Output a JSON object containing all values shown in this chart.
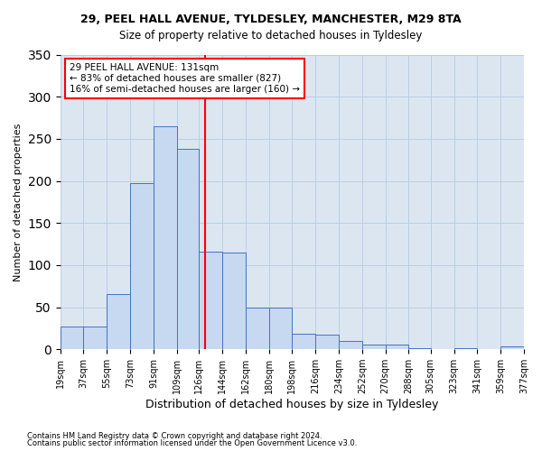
{
  "title1": "29, PEEL HALL AVENUE, TYLDESLEY, MANCHESTER, M29 8TA",
  "title2": "Size of property relative to detached houses in Tyldesley",
  "xlabel": "Distribution of detached houses by size in Tyldesley",
  "ylabel": "Number of detached properties",
  "footnote1": "Contains HM Land Registry data © Crown copyright and database right 2024.",
  "footnote2": "Contains public sector information licensed under the Open Government Licence v3.0.",
  "annotation_line1": "29 PEEL HALL AVENUE: 131sqm",
  "annotation_line2": "← 83% of detached houses are smaller (827)",
  "annotation_line3": "16% of semi-detached houses are larger (160) →",
  "property_size": 131,
  "bin_edges": [
    19,
    37,
    55,
    73,
    91,
    109,
    126,
    144,
    162,
    180,
    198,
    216,
    234,
    252,
    270,
    288,
    305,
    323,
    341,
    359,
    377
  ],
  "bin_labels": [
    "19sqm",
    "37sqm",
    "55sqm",
    "73sqm",
    "91sqm",
    "109sqm",
    "126sqm",
    "144sqm",
    "162sqm",
    "180sqm",
    "198sqm",
    "216sqm",
    "234sqm",
    "252sqm",
    "270sqm",
    "288sqm",
    "305sqm",
    "323sqm",
    "341sqm",
    "359sqm",
    "377sqm"
  ],
  "bar_heights": [
    27,
    27,
    66,
    197,
    265,
    238,
    116,
    115,
    50,
    50,
    18,
    17,
    10,
    6,
    6,
    1,
    0,
    1,
    0,
    3
  ],
  "bar_color": "#c6d9f1",
  "bar_edge_color": "#4472c4",
  "vline_color": "red",
  "vline_x": 131,
  "ylim": [
    0,
    350
  ],
  "yticks": [
    0,
    50,
    100,
    150,
    200,
    250,
    300,
    350
  ],
  "grid_color": "#b8cfe4",
  "background_color": "#dce6f1"
}
